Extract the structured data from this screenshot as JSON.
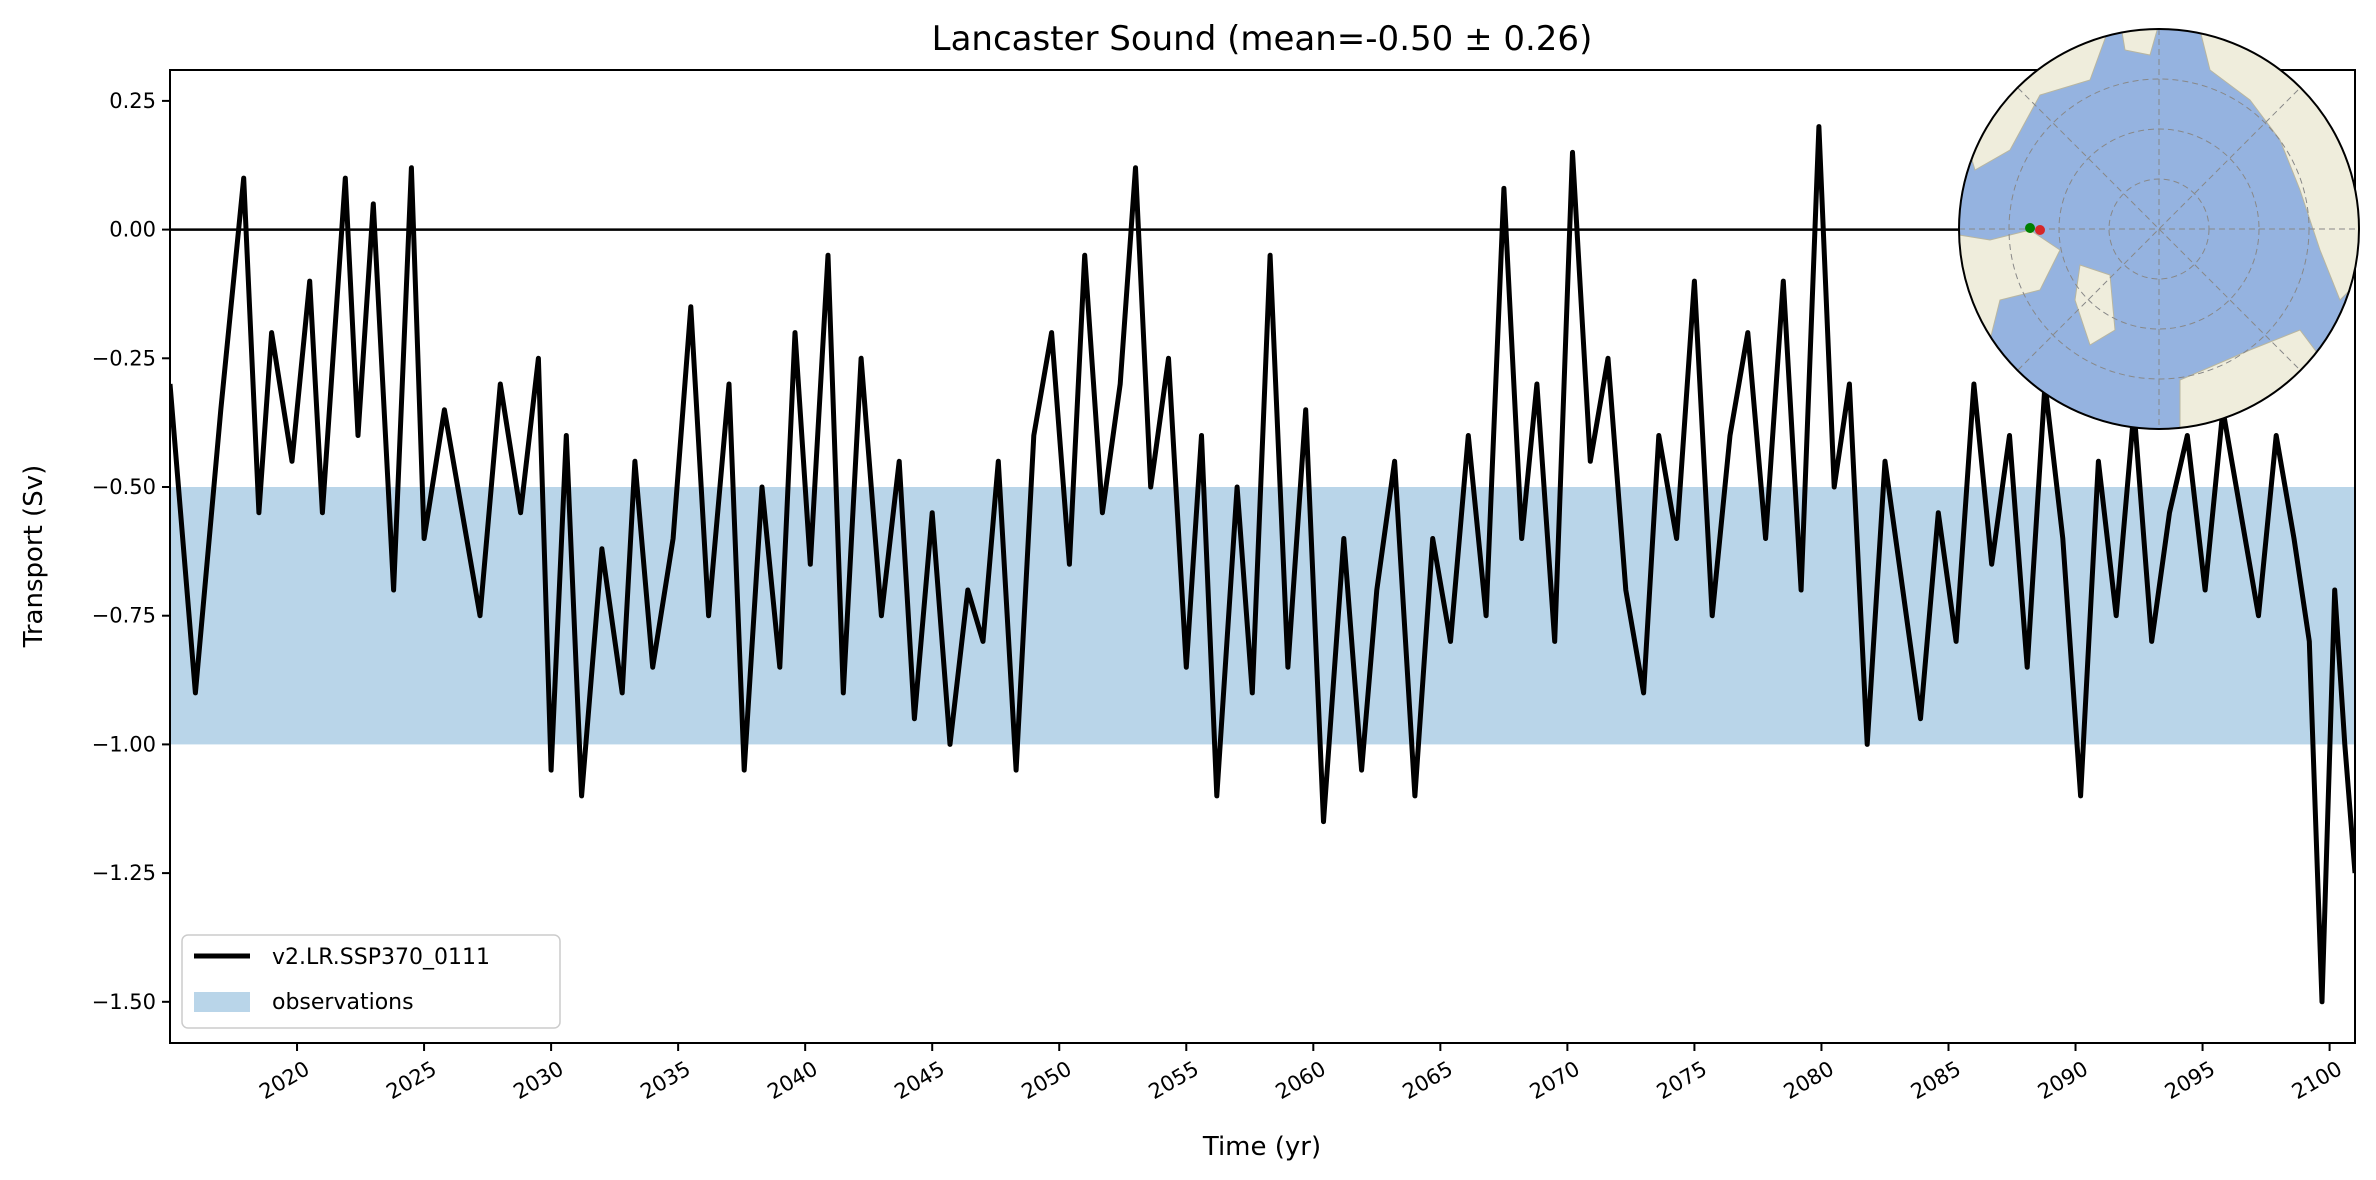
{
  "chart_data": {
    "type": "line",
    "title": "Lancaster Sound (mean=-0.50 ± 0.26)",
    "xlabel": "Time (yr)",
    "ylabel": "Transport (Sv)",
    "xlim": [
      2015,
      2101
    ],
    "ylim": [
      -1.58,
      0.31
    ],
    "x_ticks": [
      2020,
      2025,
      2030,
      2035,
      2040,
      2045,
      2050,
      2055,
      2060,
      2065,
      2070,
      2075,
      2080,
      2085,
      2090,
      2095,
      2100
    ],
    "y_ticks": [
      0.25,
      0.0,
      -0.25,
      -0.5,
      -0.75,
      -1.0,
      -1.25,
      -1.5
    ],
    "y_tick_labels": [
      "0.25",
      "0.00",
      "−0.25",
      "−0.50",
      "−0.75",
      "−1.00",
      "−1.25",
      "−1.50"
    ],
    "zero_line": 0.0,
    "observations_band": {
      "name": "observations",
      "low": -1.0,
      "high": -0.5,
      "color": "#b9d5e9"
    },
    "series": [
      {
        "name": "v2.LR.SSP370_0111",
        "color": "#000000",
        "x": [
          2015.0,
          2016.0,
          2017.0,
          2017.9,
          2018.5,
          2019.0,
          2019.8,
          2020.5,
          2021.0,
          2021.9,
          2022.4,
          2023.0,
          2023.8,
          2024.5,
          2025.0,
          2025.8,
          2026.5,
          2027.2,
          2028.0,
          2028.8,
          2029.5,
          2030.0,
          2030.6,
          2031.2,
          2032.0,
          2032.8,
          2033.3,
          2034.0,
          2034.8,
          2035.5,
          2036.2,
          2037.0,
          2037.6,
          2038.3,
          2039.0,
          2039.6,
          2040.2,
          2040.9,
          2041.5,
          2042.2,
          2043.0,
          2043.7,
          2044.3,
          2045.0,
          2045.7,
          2046.4,
          2047.0,
          2047.6,
          2048.3,
          2049.0,
          2049.7,
          2050.4,
          2051.0,
          2051.7,
          2052.4,
          2053.0,
          2053.6,
          2054.3,
          2055.0,
          2055.6,
          2056.2,
          2057.0,
          2057.6,
          2058.3,
          2059.0,
          2059.7,
          2060.4,
          2061.2,
          2061.9,
          2062.5,
          2063.2,
          2064.0,
          2064.7,
          2065.4,
          2066.1,
          2066.8,
          2067.5,
          2068.2,
          2068.8,
          2069.5,
          2070.2,
          2070.9,
          2071.6,
          2072.3,
          2073.0,
          2073.6,
          2074.3,
          2075.0,
          2075.7,
          2076.4,
          2077.1,
          2077.8,
          2078.5,
          2079.2,
          2079.9,
          2080.5,
          2081.1,
          2081.8,
          2082.5,
          2083.2,
          2083.9,
          2084.6,
          2085.3,
          2086.0,
          2086.7,
          2087.4,
          2088.1,
          2088.8,
          2089.5,
          2090.2,
          2090.9,
          2091.6,
          2092.3,
          2093.0,
          2093.7,
          2094.4,
          2095.1,
          2095.8,
          2096.5,
          2097.2,
          2097.9,
          2098.6,
          2099.2,
          2099.7,
          2100.2,
          2100.6,
          2101.0
        ],
        "values": [
          -0.3,
          -0.9,
          -0.35,
          0.1,
          -0.55,
          -0.2,
          -0.45,
          -0.1,
          -0.55,
          0.1,
          -0.4,
          0.05,
          -0.7,
          0.12,
          -0.6,
          -0.35,
          -0.55,
          -0.75,
          -0.3,
          -0.55,
          -0.25,
          -1.05,
          -0.4,
          -1.1,
          -0.62,
          -0.9,
          -0.45,
          -0.85,
          -0.6,
          -0.15,
          -0.75,
          -0.3,
          -1.05,
          -0.5,
          -0.85,
          -0.2,
          -0.65,
          -0.05,
          -0.9,
          -0.25,
          -0.75,
          -0.45,
          -0.95,
          -0.55,
          -1.0,
          -0.7,
          -0.8,
          -0.45,
          -1.05,
          -0.4,
          -0.2,
          -0.65,
          -0.05,
          -0.55,
          -0.3,
          0.12,
          -0.5,
          -0.25,
          -0.85,
          -0.4,
          -1.1,
          -0.5,
          -0.9,
          -0.05,
          -0.85,
          -0.35,
          -1.15,
          -0.6,
          -1.05,
          -0.7,
          -0.45,
          -1.1,
          -0.6,
          -0.8,
          -0.4,
          -0.75,
          0.08,
          -0.6,
          -0.3,
          -0.8,
          0.15,
          -0.45,
          -0.25,
          -0.7,
          -0.9,
          -0.4,
          -0.6,
          -0.1,
          -0.75,
          -0.4,
          -0.2,
          -0.6,
          -0.1,
          -0.7,
          0.2,
          -0.5,
          -0.3,
          -1.0,
          -0.45,
          -0.7,
          -0.95,
          -0.55,
          -0.8,
          -0.3,
          -0.65,
          -0.4,
          -0.85,
          -0.3,
          -0.6,
          -1.1,
          -0.45,
          -0.75,
          -0.35,
          -0.8,
          -0.55,
          -0.4,
          -0.7,
          -0.35,
          -0.55,
          -0.75,
          -0.4,
          -0.6,
          -0.8,
          -1.5,
          -0.7,
          -1.0,
          -1.25
        ]
      }
    ],
    "legend": {
      "location": "lower-left",
      "entries": [
        "v2.LR.SSP370_0111",
        "observations"
      ]
    },
    "inset_map": {
      "description": "Arctic polar stereographic map",
      "ocean_color": "#95b3e0",
      "land_color": "#efeddc",
      "marker_colors": [
        "#008000",
        "#d62728"
      ]
    }
  }
}
